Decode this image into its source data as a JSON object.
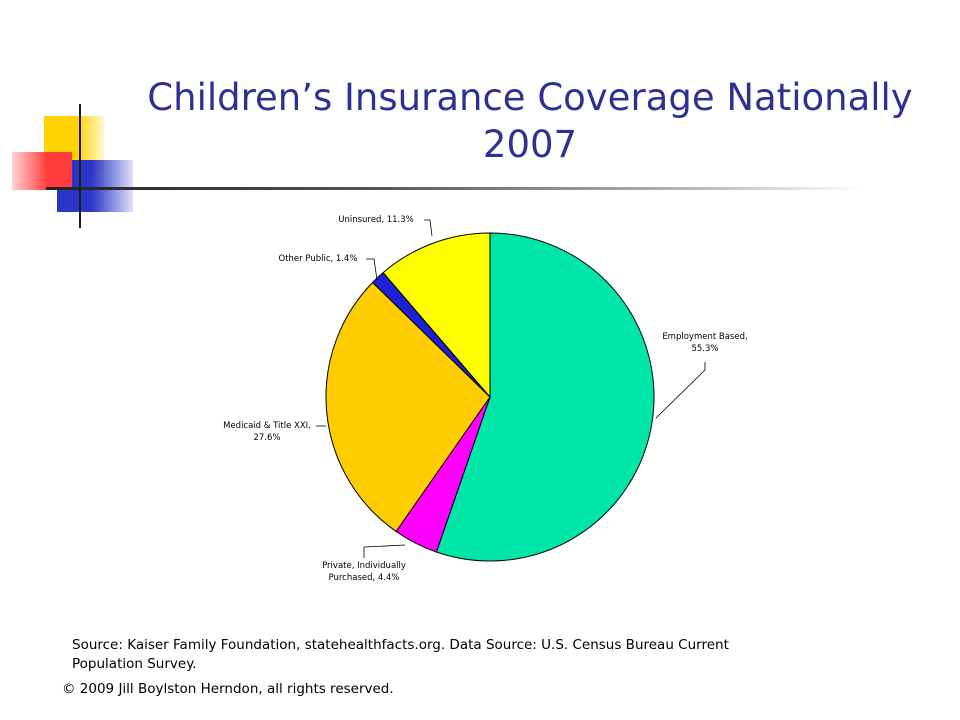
{
  "title_lines": [
    "Children’s Insurance Coverage Nationally",
    "2007"
  ],
  "chart_data": {
    "type": "pie",
    "slices": [
      {
        "label": "Employment Based,",
        "label2": "55.3%",
        "value": 55.3,
        "color": "#00e5a8"
      },
      {
        "label": "Private, Individually",
        "label2": "Purchased, 4.4%",
        "value": 4.4,
        "color": "#ff00ff"
      },
      {
        "label": "Medicaid & Title XXI,",
        "label2": "27.6%",
        "value": 27.6,
        "color": "#ffcc00"
      },
      {
        "label": "Other Public, 1.4%",
        "label2": "",
        "value": 1.4,
        "color": "#1f1fd6"
      },
      {
        "label": "Uninsured, 11.3%",
        "label2": "",
        "value": 11.3,
        "color": "#ffff00"
      }
    ]
  },
  "source_text": "Source: Kaiser Family Foundation, statehealthfacts.org.  Data Source: U.S. Census Bureau Current Population Survey.",
  "copyright_text": "© 2009 Jill Boylston Herndon, all rights reserved."
}
